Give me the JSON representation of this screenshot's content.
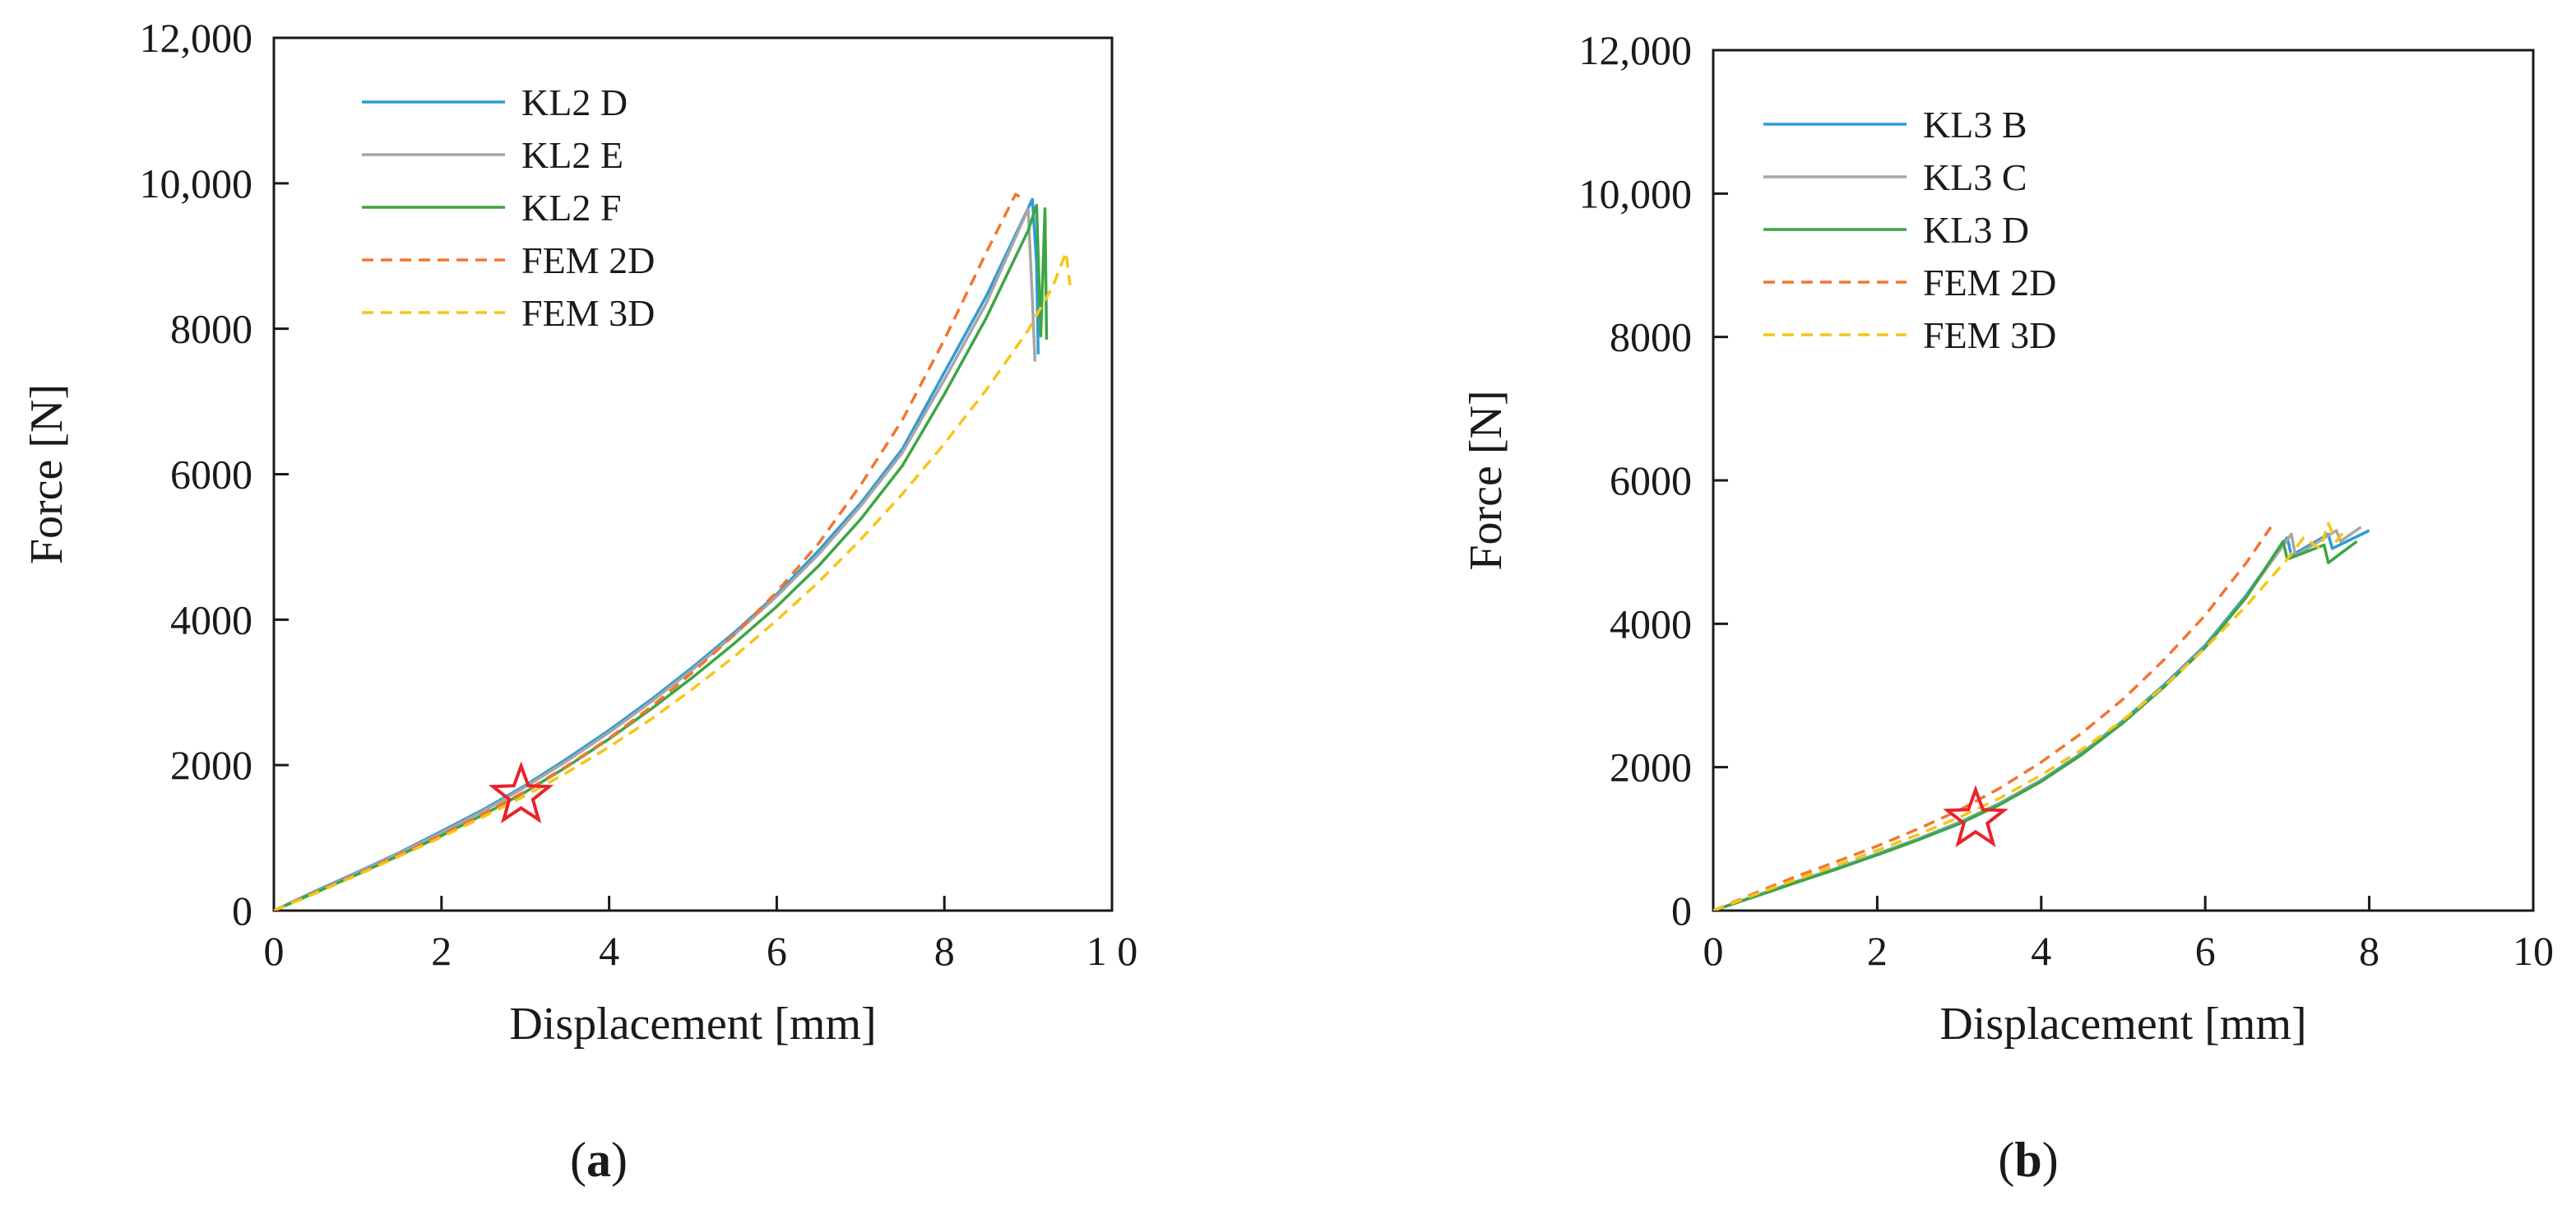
{
  "colors": {
    "kl_1": "#2E9BD6",
    "kl_2": "#A6A6A6",
    "kl_3": "#3DA543",
    "fem_2d": "#F2762E",
    "fem_3d": "#F5C518",
    "star": "#E8232B"
  },
  "chart_data": [
    {
      "type": "line",
      "panel_label": "a",
      "xlabel": "Displacement [mm]",
      "ylabel": "Force [N]",
      "xlim": [
        0,
        10
      ],
      "ylim": [
        0,
        12000
      ],
      "grid": false,
      "legend_position": "top-left",
      "x_ticks": [
        0,
        2,
        4,
        6,
        8,
        10
      ],
      "x_tick_labels": [
        "0",
        "2",
        "4",
        "6",
        "8",
        "1 0"
      ],
      "y_ticks": [
        0,
        2000,
        4000,
        6000,
        8000,
        10000,
        12000
      ],
      "y_tick_labels": [
        "0",
        "2000",
        "4000",
        "6000",
        "8000",
        "10,000",
        "12,000"
      ],
      "marker": {
        "type": "star",
        "x": 2.95,
        "y": 1580
      },
      "series": [
        {
          "name": "KL2 D",
          "style": "solid",
          "color_key": "kl_1",
          "x": [
            0,
            0.5,
            1,
            1.5,
            2,
            2.5,
            3,
            3.5,
            4,
            4.5,
            5,
            5.5,
            6,
            6.5,
            7,
            7.5,
            8,
            8.5,
            9.05,
            9.1,
            9.12
          ],
          "y": [
            0,
            270,
            530,
            800,
            1090,
            1390,
            1720,
            2090,
            2480,
            2900,
            3350,
            3830,
            4350,
            4950,
            5600,
            6350,
            7400,
            8450,
            9780,
            8900,
            7650
          ]
        },
        {
          "name": "KL2 E",
          "style": "solid",
          "color_key": "kl_2",
          "x": [
            0,
            0.5,
            1,
            1.5,
            2,
            2.5,
            3,
            3.5,
            4,
            4.5,
            5,
            5.5,
            6,
            6.5,
            7,
            7.5,
            8,
            8.5,
            9.0,
            9.05,
            9.08
          ],
          "y": [
            0,
            260,
            520,
            790,
            1070,
            1370,
            1700,
            2060,
            2450,
            2870,
            3320,
            3800,
            4320,
            4900,
            5560,
            6300,
            7300,
            8350,
            9650,
            8400,
            7550
          ]
        },
        {
          "name": "KL2 F",
          "style": "solid",
          "color_key": "kl_3",
          "x": [
            0,
            0.5,
            1,
            1.5,
            2,
            2.5,
            3,
            3.5,
            4,
            4.5,
            5,
            5.5,
            6,
            6.5,
            7,
            7.5,
            8,
            8.5,
            9.0,
            9.1,
            9.15,
            9.2,
            9.22
          ],
          "y": [
            0,
            250,
            500,
            760,
            1030,
            1320,
            1630,
            1980,
            2360,
            2770,
            3210,
            3680,
            4180,
            4740,
            5380,
            6120,
            7100,
            8150,
            9350,
            9700,
            7900,
            9650,
            7850
          ]
        },
        {
          "name": "FEM 2D",
          "style": "dashed",
          "color_key": "fem_2d",
          "x": [
            0,
            0.5,
            1,
            1.5,
            2,
            2.5,
            3,
            3.5,
            4,
            4.5,
            5,
            5.5,
            6,
            6.5,
            7,
            7.5,
            8,
            8.5,
            8.85,
            8.95
          ],
          "y": [
            0,
            250,
            500,
            770,
            1040,
            1330,
            1640,
            1990,
            2370,
            2800,
            3280,
            3800,
            4380,
            5050,
            5850,
            6750,
            7850,
            9050,
            9850,
            9780
          ]
        },
        {
          "name": "FEM 3D",
          "style": "dashed",
          "color_key": "fem_3d",
          "x": [
            0,
            0.5,
            1,
            1.5,
            2,
            2.5,
            3,
            3.5,
            4,
            4.5,
            5,
            5.5,
            6,
            6.5,
            7,
            7.5,
            8,
            8.5,
            9.0,
            9.3,
            9.45,
            9.5
          ],
          "y": [
            0,
            240,
            490,
            750,
            1010,
            1290,
            1580,
            1900,
            2250,
            2630,
            3050,
            3500,
            3990,
            4520,
            5100,
            5730,
            6420,
            7160,
            7980,
            8600,
            9050,
            8600
          ]
        }
      ]
    },
    {
      "type": "line",
      "panel_label": "b",
      "xlabel": "Displacement [mm]",
      "ylabel": "Force [N]",
      "xlim": [
        0,
        10
      ],
      "ylim": [
        0,
        12000
      ],
      "grid": false,
      "legend_position": "top-left",
      "x_ticks": [
        0,
        2,
        4,
        6,
        8,
        10
      ],
      "x_tick_labels": [
        "0",
        "2",
        "4",
        "6",
        "8",
        "10"
      ],
      "y_ticks": [
        0,
        2000,
        4000,
        6000,
        8000,
        10000,
        12000
      ],
      "y_tick_labels": [
        "0",
        "2000",
        "4000",
        "6000",
        "8000",
        "10,000",
        "12,000"
      ],
      "marker": {
        "type": "star",
        "x": 3.2,
        "y": 1270
      },
      "series": [
        {
          "name": "KL3 B",
          "style": "solid",
          "color_key": "kl_1",
          "x": [
            0,
            0.5,
            1,
            1.5,
            2,
            2.5,
            3,
            3.5,
            4,
            4.5,
            5,
            5.5,
            6,
            6.5,
            7.0,
            7.05,
            7.5,
            7.55,
            8.0
          ],
          "y": [
            0,
            200,
            400,
            590,
            790,
            1000,
            1230,
            1500,
            1820,
            2200,
            2650,
            3150,
            3700,
            4400,
            5200,
            4950,
            5250,
            5050,
            5300
          ]
        },
        {
          "name": "KL3 C",
          "style": "solid",
          "color_key": "kl_2",
          "x": [
            0,
            0.5,
            1,
            1.5,
            2,
            2.5,
            3,
            3.5,
            4,
            4.5,
            5,
            5.5,
            6,
            6.5,
            7.05,
            7.1,
            7.6,
            7.65,
            7.9
          ],
          "y": [
            0,
            195,
            395,
            585,
            785,
            995,
            1225,
            1490,
            1810,
            2190,
            2630,
            3130,
            3680,
            4380,
            5250,
            4950,
            5300,
            5150,
            5350
          ]
        },
        {
          "name": "KL3 D",
          "style": "solid",
          "color_key": "kl_3",
          "x": [
            0,
            0.5,
            1,
            1.5,
            2,
            2.5,
            3,
            3.5,
            4,
            4.5,
            5,
            5.5,
            6,
            6.5,
            6.95,
            7.0,
            7.45,
            7.5,
            7.85
          ],
          "y": [
            0,
            190,
            385,
            575,
            775,
            985,
            1210,
            1480,
            1800,
            2180,
            2620,
            3120,
            3670,
            4370,
            5150,
            4900,
            5100,
            4850,
            5150
          ]
        },
        {
          "name": "FEM 2D",
          "style": "dashed",
          "color_key": "fem_2d",
          "x": [
            0,
            0.5,
            1,
            1.5,
            2,
            2.5,
            3,
            3.5,
            4,
            4.5,
            5,
            5.5,
            6,
            6.5,
            6.8
          ],
          "y": [
            0,
            240,
            470,
            680,
            900,
            1140,
            1400,
            1710,
            2070,
            2480,
            2950,
            3500,
            4120,
            4850,
            5350
          ]
        },
        {
          "name": "FEM 3D",
          "style": "dashed",
          "color_key": "fem_3d",
          "x": [
            0,
            0.5,
            1,
            1.5,
            2,
            2.5,
            3,
            3.5,
            4,
            4.5,
            5,
            5.5,
            6,
            6.5,
            7.0,
            7.2,
            7.4,
            7.5,
            7.6,
            7.7
          ],
          "y": [
            0,
            220,
            430,
            630,
            840,
            1060,
            1300,
            1570,
            1890,
            2250,
            2660,
            3130,
            3660,
            4250,
            4900,
            5200,
            5050,
            5400,
            5150,
            5300
          ]
        }
      ]
    }
  ]
}
